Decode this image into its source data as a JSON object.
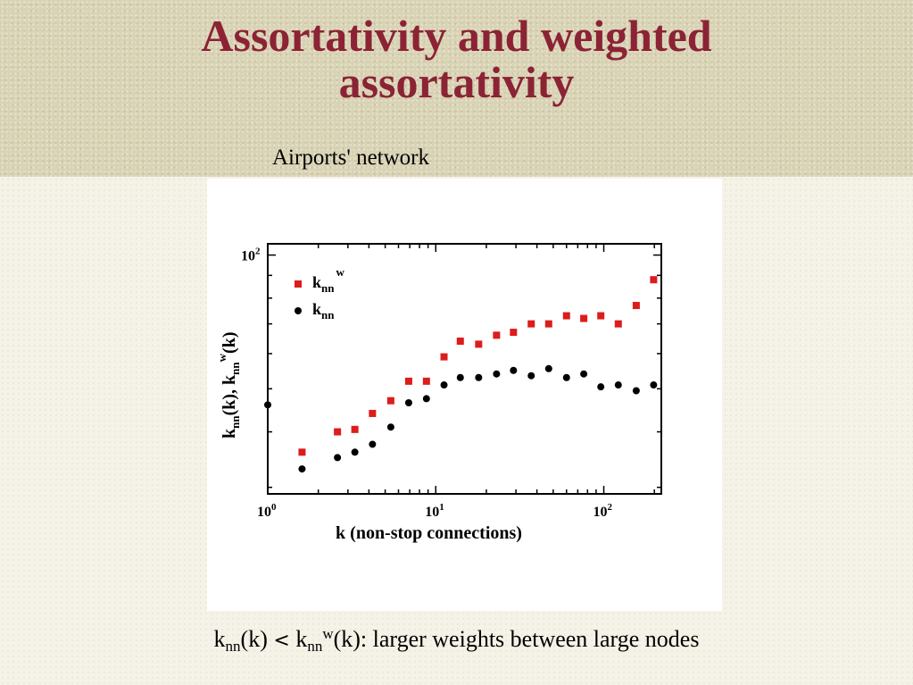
{
  "slide": {
    "title_line1": "Assortativity and weighted",
    "title_line2": "assortativity",
    "caption": "Airports' network",
    "footnote": {
      "k1": "k",
      "sub1": "nn",
      "arg1": "(k)",
      "op": "<",
      "k2": "k",
      "sub2": "nn",
      "sup2": "w",
      "rest": "(k): larger weights between large nodes"
    },
    "colors": {
      "title": "#8b2335",
      "header_band": "#d9d3b5",
      "weighted_series": "#dd1c1c",
      "unweighted_series": "#000000"
    }
  },
  "chart_data": {
    "type": "scatter",
    "x_scale": "log",
    "y_scale": "log",
    "xlabel": "k  (non-stop connections)",
    "ylabel": "k_nn(k), k_nn^w(k)",
    "x_ticks": [
      {
        "base": "10",
        "exp": "0",
        "value": 1
      },
      {
        "base": "10",
        "exp": "1",
        "value": 10
      },
      {
        "base": "10",
        "exp": "2",
        "value": 100
      }
    ],
    "y_ticks": [
      {
        "base": "10",
        "exp": "2",
        "value": 100
      }
    ],
    "xlim": [
      1,
      220
    ],
    "ylim": [
      29,
      106
    ],
    "legend": {
      "position": "top-left",
      "entries": [
        {
          "k": "k",
          "sub": "nn",
          "sup": "w",
          "marker": "square",
          "color": "#dd1c1c"
        },
        {
          "k": "k",
          "sub": "nn",
          "sup": "",
          "marker": "circle",
          "color": "#000000"
        }
      ]
    },
    "series": [
      {
        "name": "k_nn^w",
        "marker": "square",
        "color": "#dd1c1c",
        "x": [
          1.6,
          2.6,
          3.3,
          4.2,
          5.4,
          6.9,
          8.8,
          11.2,
          14,
          18,
          23,
          29,
          37,
          47,
          60,
          76,
          96,
          122,
          156,
          198
        ],
        "y": [
          36,
          40,
          40.5,
          44,
          47,
          52,
          52,
          59,
          64,
          63,
          66,
          67,
          70,
          70,
          73,
          72,
          73,
          70,
          77,
          88
        ]
      },
      {
        "name": "k_nn",
        "marker": "circle",
        "color": "#000000",
        "x": [
          1.0,
          1.6,
          2.6,
          3.3,
          4.2,
          5.4,
          6.9,
          8.8,
          11.2,
          14,
          18,
          23,
          29,
          37,
          47,
          60,
          76,
          96,
          122,
          156,
          198
        ],
        "y": [
          46,
          33,
          35,
          36,
          37.5,
          41,
          46.5,
          47.5,
          51,
          53,
          53,
          54,
          55,
          53.5,
          55.5,
          53,
          54,
          50.5,
          51,
          49.5,
          51
        ]
      }
    ]
  }
}
